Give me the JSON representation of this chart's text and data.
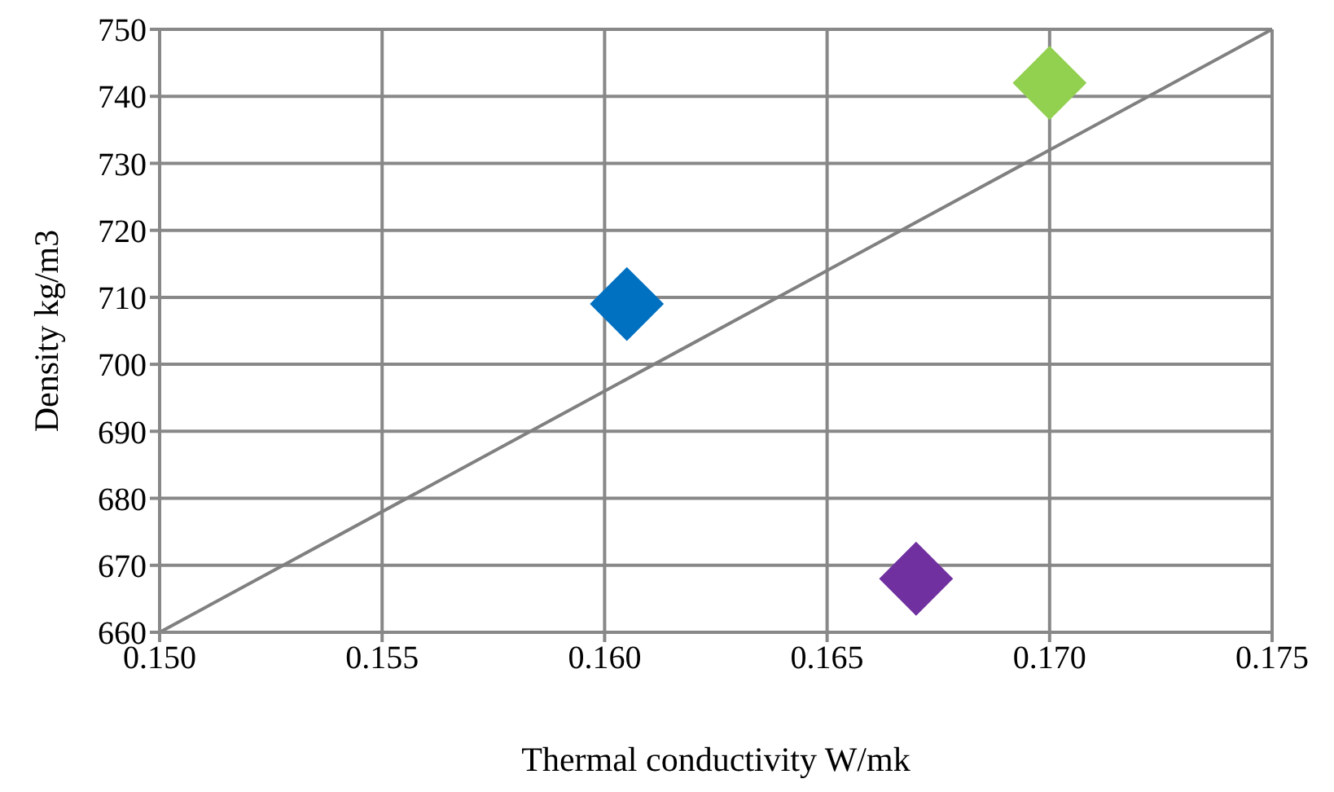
{
  "chart_data": {
    "type": "scatter",
    "xlabel": "Thermal conductivity W/mk",
    "ylabel": "Density kg/m3",
    "x": [
      0.1605,
      0.17,
      0.167
    ],
    "series": [
      {
        "values": [
          709,
          742,
          668
        ],
        "colors": [
          "#0070c0",
          "#92d050",
          "#7030a0"
        ],
        "marker": "diamond"
      },
      {
        "type": "line",
        "x": [
          0.15,
          0.175
        ],
        "values": [
          660,
          750
        ],
        "color": "#808080",
        "marker": "none",
        "line_style": "solid"
      }
    ],
    "xlim": [
      0.15,
      0.175
    ],
    "xticks": [
      {
        "value": 0.15,
        "label": "0.150"
      },
      {
        "value": 0.155,
        "label": "0.155"
      },
      {
        "value": 0.16,
        "label": "0.160"
      },
      {
        "value": 0.165,
        "label": "0.165"
      },
      {
        "value": 0.17,
        "label": "0.170"
      },
      {
        "value": 0.175,
        "label": "0.175"
      }
    ],
    "ylim": [
      660,
      750
    ],
    "yticks": [
      660,
      670,
      680,
      690,
      700,
      710,
      720,
      730,
      740,
      750
    ],
    "grid": true,
    "legend": false
  }
}
